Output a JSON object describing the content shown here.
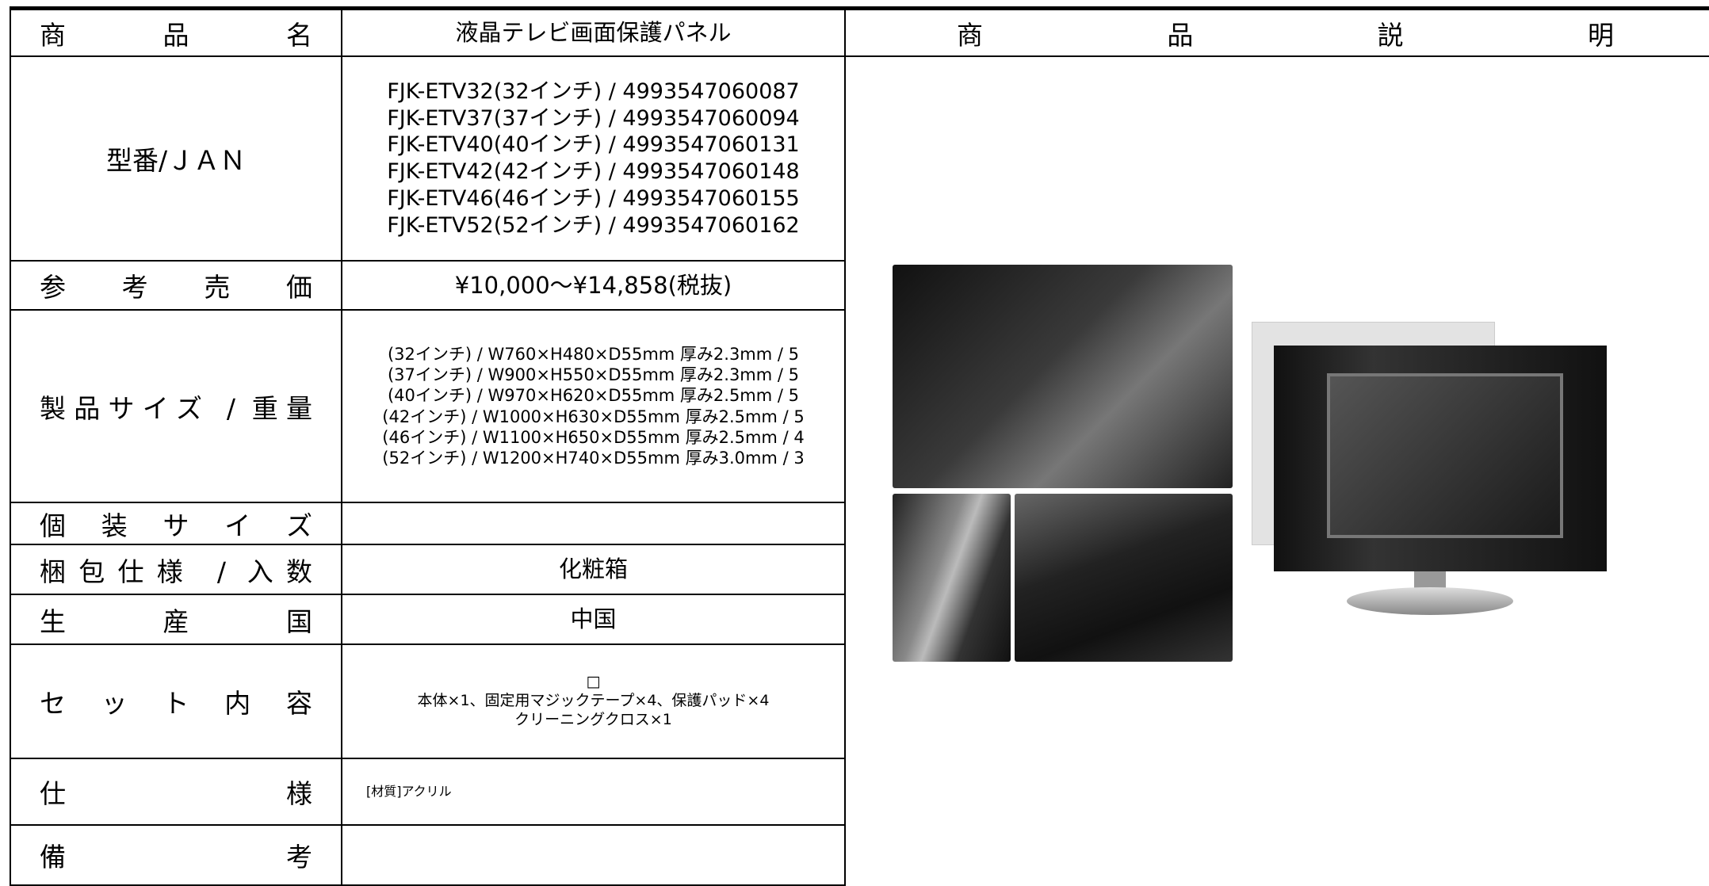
{
  "header": {
    "label": "商 品 名",
    "value": "液晶テレビ画面保護パネル",
    "description": "商 品 説 明"
  },
  "rows": [
    {
      "label": "型番/ＪＡＮ",
      "lines": [
        "FJK-ETV32(32インチ) / 4993547060087",
        "FJK-ETV37(37インチ) / 4993547060094",
        "FJK-ETV40(40インチ) / 4993547060131",
        "FJK-ETV42(42インチ) / 4993547060148",
        "FJK-ETV46(46インチ) / 4993547060155",
        "FJK-ETV52(52インチ) / 4993547060162"
      ]
    },
    {
      "label": "参 考 売 価",
      "lines": [
        "¥10,000～¥14,858(税抜)"
      ]
    },
    {
      "label": "製品サイズ / 重量",
      "lines": [
        "(32インチ) / W760×H480×D55mm 厚み2.3mm / 5",
        "(37インチ) / W900×H550×D55mm 厚み2.3mm / 5",
        "(40インチ) / W970×H620×D55mm 厚み2.5mm / 5",
        "(42インチ) / W1000×H630×D55mm 厚み2.5mm / 5",
        "(46インチ) / W1100×H650×D55mm 厚み2.5mm / 4",
        "(52インチ) / W1200×H740×D55mm 厚み3.0mm / 3"
      ]
    },
    {
      "label": "個 装 サ イ ズ",
      "lines": []
    },
    {
      "label": "梱包仕様 / 入数",
      "lines": [
        "化粧箱"
      ]
    },
    {
      "label": "生 産 国",
      "lines": [
        "中国"
      ]
    },
    {
      "label": "セ ッ ト 内 容",
      "lines": [
        "□",
        "本体×1、固定用マジックテープ×4、保護パッド×4",
        "クリーニングクロス×1"
      ]
    },
    {
      "label": "仕 様",
      "lines": [
        "[材質]アクリル"
      ]
    },
    {
      "label": "備 考",
      "lines": []
    }
  ]
}
